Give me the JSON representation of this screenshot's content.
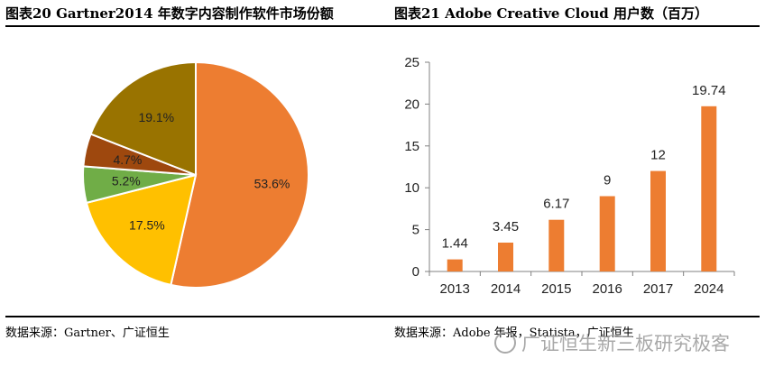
{
  "left_title": "图表20  Gartner2014 年数字内容制作软件市场份额",
  "right_title": "图表21  Adobe Creative Cloud 用户数（百万）",
  "left_source": "数据来源：Gartner、广证恒生",
  "right_source": "数据来源：Adobe 年报，Statista，广证恒生",
  "watermark": "广证恒生新三板研究极客",
  "chart_data": [
    {
      "type": "pie",
      "title": "Gartner2014 年数字内容制作软件市场份额",
      "labels": [
        "53.6%",
        "17.5%",
        "5.2%",
        "4.7%",
        "19.1%"
      ],
      "values": [
        53.6,
        17.5,
        5.2,
        4.7,
        19.1
      ],
      "colors": [
        "#ED7D31",
        "#FFC000",
        "#70AD47",
        "#9E480E",
        "#997300"
      ],
      "start": "12 o'clock",
      "direction": "clockwise"
    },
    {
      "type": "bar",
      "title": "Adobe Creative Cloud 用户数（百万）",
      "categories": [
        "2013",
        "2014",
        "2015",
        "2016",
        "2017",
        "2024"
      ],
      "values": [
        1.44,
        3.45,
        6.17,
        9,
        12,
        19.74
      ],
      "data_labels": [
        "1.44",
        "3.45",
        "6.17",
        "9",
        "12",
        "19.74"
      ],
      "ylim": [
        0,
        25
      ],
      "yticks": [
        "0",
        "5",
        "10",
        "15",
        "20",
        "25"
      ],
      "bar_color": "#ED7D31",
      "grid": false
    }
  ]
}
